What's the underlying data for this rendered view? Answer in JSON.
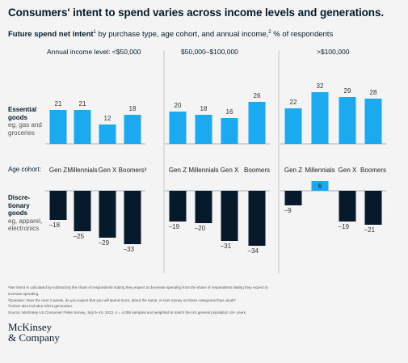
{
  "title": "Consumers' intent to spend varies across income levels and generations.",
  "subtitle": {
    "bold": "Future spend net intent",
    "sup1": "1",
    "mid": " by purchase type, age cohort, and annual income,",
    "sup2": "2",
    "rest": " % of respondents"
  },
  "labels": {
    "essential_title": "Essential goods",
    "essential_sub": "eg, gas and groceries",
    "disc_title": "Discre- tionary goods",
    "disc_sub": "eg, apparel, electronics",
    "cohort_label": "Age cohort:"
  },
  "chart_data": {
    "type": "bar",
    "categories": [
      "Gen Z",
      "Millennials",
      "Gen X",
      "Boomers"
    ],
    "category_labels": [
      [
        "Gen Z",
        "Millennials",
        "Gen X",
        "Boomers³"
      ],
      [
        "Gen Z",
        "Millennials",
        "Gen X",
        "Boomers"
      ],
      [
        "Gen Z",
        "Millennials",
        "Gen X",
        "Boomers"
      ]
    ],
    "panels": [
      {
        "title": "Annual income level: <$50,000",
        "essential": [
          21,
          21,
          12,
          18
        ],
        "discretionary": [
          -18,
          -25,
          -29,
          -33
        ]
      },
      {
        "title": "$50,000–$100,000",
        "essential": [
          20,
          18,
          16,
          26
        ],
        "discretionary": [
          -19,
          -20,
          -31,
          -34
        ]
      },
      {
        "title": ">$100,000",
        "essential": [
          22,
          32,
          29,
          28
        ],
        "discretionary": [
          -9,
          6,
          -19,
          -21
        ]
      }
    ],
    "value_labels": {
      "essential": [
        [
          "21",
          "21",
          "12",
          "18"
        ],
        [
          "20",
          "18",
          "16",
          "26"
        ],
        [
          "22",
          "32",
          "29",
          "28"
        ]
      ],
      "discretionary": [
        [
          "−18",
          "−25",
          "−29",
          "−33"
        ],
        [
          "−19",
          "−20",
          "−31",
          "−34"
        ],
        [
          "−9",
          "6",
          "−19",
          "−21"
        ]
      ]
    },
    "colors": {
      "essential": "#1ba9f0",
      "discretionary": "#071a2b",
      "positive_discretionary": "#1ba9f0"
    }
  },
  "notes": [
    "¹Net intent is calculated by subtracting the share of respondents stating they expect to decrease spending from the share of respondents stating they expect to",
    "  increase spending.",
    "²Question: Over the next 2 weeks, do you expect that you will spend more, about the same, or less money on these categories than usual?",
    "³Cohort also includes Silent generation.",
    "Source: McKinsey US Consumer Pulse Survey, July 5–10, 2022, n = 4,009 sampled and weighted to match the US general population 18+ years"
  ],
  "logo": {
    "line1": "McKinsey",
    "line2": "& Company"
  }
}
